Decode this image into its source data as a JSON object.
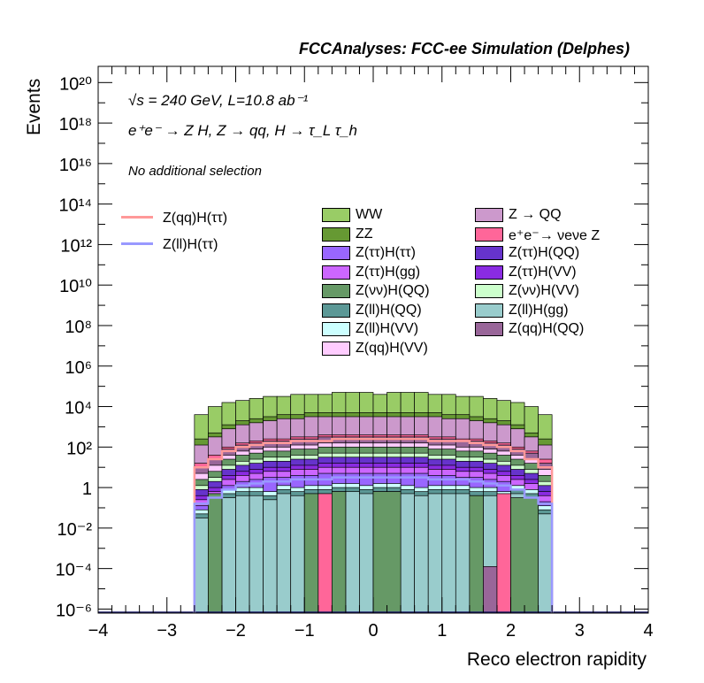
{
  "header": "FCCAnalyses: FCC-ee Simulation (Delphes)",
  "annotations": {
    "line1": "√s = 240 GeV, L=10.8 ab⁻¹",
    "line2": "e⁺e⁻ → Z H, Z → qq, H → τ_L τ_h",
    "line3": "No additional selection"
  },
  "chart_data": {
    "type": "histogram-stack",
    "xlabel": "Reco electron rapidity",
    "ylabel": "Events",
    "xlim": [
      -4,
      4
    ],
    "ylim_log10": [
      -6.2,
      20.8
    ],
    "yscale": "log",
    "x_ticks": [
      "−4",
      "−3",
      "−2",
      "−1",
      "0",
      "1",
      "2",
      "3",
      "4"
    ],
    "y_ticks": [
      "10⁻⁶",
      "10⁻⁴",
      "10⁻²",
      "1",
      "10²",
      "10⁴",
      "10⁶",
      "10⁸",
      "10¹⁰",
      "10¹²",
      "10¹⁴",
      "10¹⁶",
      "10¹⁸",
      "10²⁰"
    ],
    "bin_edges": [
      -2.6,
      -2.4,
      -2.2,
      -2.0,
      -1.8,
      -1.6,
      -1.4,
      -1.2,
      -1.0,
      -0.8,
      -0.6,
      -0.4,
      -0.2,
      0.0,
      0.2,
      0.4,
      0.6,
      0.8,
      1.0,
      1.2,
      1.4,
      1.6,
      1.8,
      2.0,
      2.2,
      2.4,
      2.6
    ],
    "stack_layers": [
      {
        "name": "Z(ll)H(gg)",
        "color": "#99cccc",
        "log10_top": [
          -1.5,
          -1.2,
          -0.5,
          -0.4,
          -0.4,
          -0.6,
          -0.3,
          -0.4,
          -0.3,
          -0.3,
          -0.2,
          -0.2,
          -0.3,
          -0.2,
          -0.2,
          -0.3,
          -0.4,
          -0.3,
          -0.3,
          -0.3,
          -0.4,
          -0.4,
          -0.6,
          -0.3,
          -0.5,
          -1.3
        ]
      },
      {
        "name": "Z(ll)H(QQ)",
        "color": "#5c9896",
        "log10_top": [
          -1.3,
          -1.0,
          -0.3,
          -0.2,
          -0.2,
          -0.4,
          -0.1,
          -0.2,
          -0.1,
          -0.1,
          0.0,
          0.0,
          -0.1,
          0.0,
          0.0,
          -0.1,
          -0.2,
          -0.1,
          -0.1,
          -0.1,
          -0.2,
          -0.2,
          -0.4,
          -0.1,
          -0.3,
          -1.1
        ]
      },
      {
        "name": "Z(ll)H(VV)",
        "color": "#ccffff",
        "log10_top": [
          -1.1,
          -0.8,
          -0.1,
          0.0,
          0.0,
          -0.2,
          0.1,
          0.0,
          0.1,
          0.1,
          0.2,
          0.2,
          0.1,
          0.2,
          0.2,
          0.1,
          0.0,
          0.1,
          0.1,
          0.1,
          0.0,
          0.0,
          -0.2,
          0.1,
          -0.1,
          -0.9
        ]
      },
      {
        "name": "Z(ττ)H(ττ)",
        "color": "#9966ff",
        "log10_top": [
          -0.9,
          -0.5,
          0.1,
          0.3,
          0.4,
          0.5,
          0.5,
          0.6,
          0.6,
          0.7,
          0.7,
          0.7,
          0.7,
          0.7,
          0.7,
          0.7,
          0.7,
          0.6,
          0.6,
          0.5,
          0.5,
          0.4,
          0.3,
          0.1,
          -0.1,
          -0.7
        ]
      },
      {
        "name": "Z(ττ)H(gg)",
        "color": "#cc66ff",
        "log10_top": [
          -0.6,
          -0.2,
          0.4,
          0.6,
          0.7,
          0.8,
          0.8,
          0.9,
          0.9,
          1.0,
          1.0,
          1.0,
          1.0,
          1.0,
          1.0,
          1.0,
          1.0,
          0.9,
          0.9,
          0.8,
          0.8,
          0.7,
          0.6,
          0.4,
          0.2,
          -0.4
        ]
      },
      {
        "name": "Z(ττ)H(VV)",
        "color": "#8a2be2",
        "log10_top": [
          -0.4,
          0.0,
          0.6,
          0.8,
          0.9,
          1.0,
          1.0,
          1.1,
          1.1,
          1.2,
          1.2,
          1.2,
          1.2,
          1.2,
          1.2,
          1.2,
          1.2,
          1.1,
          1.1,
          1.0,
          1.0,
          0.9,
          0.8,
          0.6,
          0.4,
          -0.2
        ]
      },
      {
        "name": "Z(ττ)H(QQ)",
        "color": "#6633cc",
        "log10_top": [
          -0.1,
          0.3,
          0.9,
          1.1,
          1.2,
          1.3,
          1.3,
          1.4,
          1.4,
          1.5,
          1.5,
          1.5,
          1.5,
          1.5,
          1.5,
          1.5,
          1.5,
          1.4,
          1.4,
          1.3,
          1.3,
          1.2,
          1.1,
          0.9,
          0.7,
          0.1
        ]
      },
      {
        "name": "Z(νν)H(VV)",
        "color": "#ccffcc",
        "log10_top": [
          0.1,
          0.5,
          1.1,
          1.3,
          1.4,
          1.5,
          1.5,
          1.6,
          1.6,
          1.7,
          1.7,
          1.7,
          1.7,
          1.7,
          1.7,
          1.7,
          1.7,
          1.6,
          1.6,
          1.5,
          1.5,
          1.4,
          1.3,
          1.1,
          0.9,
          0.3
        ]
      },
      {
        "name": "Z(νν)H(QQ)",
        "color": "#669966",
        "log10_top": [
          0.4,
          0.8,
          1.4,
          1.6,
          1.7,
          1.8,
          1.8,
          1.9,
          1.9,
          2.0,
          2.0,
          2.0,
          2.0,
          2.0,
          2.0,
          2.0,
          2.0,
          1.9,
          1.9,
          1.8,
          1.8,
          1.7,
          1.6,
          1.4,
          1.2,
          0.6
        ]
      },
      {
        "name": "Z(qq)H(VV)",
        "color": "#ffccff",
        "log10_top": [
          0.7,
          1.1,
          1.6,
          1.8,
          1.9,
          2.0,
          2.0,
          2.1,
          2.1,
          2.2,
          2.2,
          2.2,
          2.2,
          2.2,
          2.2,
          2.2,
          2.2,
          2.1,
          2.1,
          2.0,
          2.0,
          1.9,
          1.8,
          1.6,
          1.4,
          0.9
        ]
      },
      {
        "name": "Z(qq)H(QQ)",
        "color": "#996699",
        "log10_top": [
          1.0,
          1.4,
          1.9,
          2.1,
          2.2,
          2.3,
          2.3,
          2.4,
          2.4,
          2.5,
          2.5,
          2.5,
          2.5,
          2.5,
          2.5,
          2.5,
          2.5,
          2.4,
          2.4,
          2.3,
          2.3,
          2.2,
          2.1,
          1.9,
          1.7,
          1.2
        ]
      },
      {
        "name": "e⁺e⁻→ νeνe Z",
        "color": "#ff6699",
        "log10_top": [
          1.2,
          1.6,
          2.0,
          2.2,
          2.3,
          2.4,
          2.4,
          2.5,
          2.5,
          2.6,
          2.6,
          2.6,
          2.6,
          2.6,
          2.6,
          2.6,
          2.6,
          2.5,
          2.5,
          2.4,
          2.4,
          2.3,
          2.2,
          2.0,
          1.8,
          1.4
        ]
      },
      {
        "name": "Z → QQ",
        "color": "#cc99cc",
        "log10_top": [
          2.1,
          2.5,
          2.9,
          3.1,
          3.2,
          3.3,
          3.4,
          3.4,
          3.5,
          3.5,
          3.5,
          3.5,
          3.5,
          3.5,
          3.5,
          3.5,
          3.5,
          3.5,
          3.4,
          3.4,
          3.3,
          3.2,
          3.1,
          2.9,
          2.5,
          2.1
        ]
      },
      {
        "name": "ZZ",
        "color": "#669933",
        "log10_top": [
          2.4,
          2.7,
          3.1,
          3.3,
          3.4,
          3.5,
          3.6,
          3.6,
          3.7,
          3.7,
          3.7,
          3.7,
          3.7,
          3.7,
          3.7,
          3.7,
          3.7,
          3.7,
          3.6,
          3.6,
          3.5,
          3.4,
          3.3,
          3.1,
          2.7,
          2.4
        ]
      },
      {
        "name": "WW",
        "color": "#99cc66",
        "log10_top": [
          3.6,
          4.0,
          4.2,
          4.3,
          4.4,
          4.5,
          4.5,
          4.6,
          4.6,
          4.6,
          4.7,
          4.7,
          4.7,
          4.6,
          4.7,
          4.7,
          4.7,
          4.6,
          4.6,
          4.5,
          4.5,
          4.4,
          4.3,
          4.2,
          4.0,
          3.6
        ]
      }
    ],
    "overlay_regions": [
      {
        "name": "Z(νν)H(QQ)",
        "color": "#669966",
        "x_from": -2.4,
        "x_to": -2.2,
        "log10_top": -0.3
      },
      {
        "name": "Z(νν)H(QQ)",
        "color": "#669966",
        "x_from": -1.0,
        "x_to": -0.8,
        "log10_top": -0.3
      },
      {
        "name": "e⁺e⁻→ νeνe Z",
        "color": "#ff6699",
        "x_from": -0.8,
        "x_to": -0.6,
        "log10_top": -0.3
      },
      {
        "name": "Z(νν)H(QQ)",
        "color": "#669966",
        "x_from": -0.6,
        "x_to": -0.4,
        "log10_top": -0.2
      },
      {
        "name": "Z(νν)H(QQ)",
        "color": "#669966",
        "x_from": 0.0,
        "x_to": 0.4,
        "log10_top": -0.2
      },
      {
        "name": "Z(νν)H(QQ)",
        "color": "#669966",
        "x_from": 1.4,
        "x_to": 1.6,
        "log10_top": -0.4
      },
      {
        "name": "Z(qq)H(QQ)",
        "color": "#996699",
        "x_from": 1.6,
        "x_to": 1.8,
        "log10_top": -3.9
      },
      {
        "name": "e⁺e⁻→ νeνe Z",
        "color": "#ff6699",
        "x_from": 1.8,
        "x_to": 2.0,
        "log10_top": -0.3
      },
      {
        "name": "Z(νν)H(QQ)",
        "color": "#669966",
        "x_from": 2.0,
        "x_to": 2.4,
        "log10_top": -0.5
      }
    ],
    "signal_lines": [
      {
        "name": "Z(qq)H(ττ)",
        "color": "#ff9999",
        "log10_values": [
          1.0,
          1.4,
          1.8,
          2.0,
          2.1,
          2.2,
          2.2,
          2.3,
          2.3,
          2.3,
          2.4,
          2.4,
          2.4,
          2.4,
          2.4,
          2.4,
          2.4,
          2.3,
          2.3,
          2.3,
          2.2,
          2.1,
          2.0,
          1.8,
          1.4,
          1.0
        ]
      },
      {
        "name": "Z(ll)H(ττ)",
        "color": "#9999ff",
        "log10_values": [
          -0.8,
          -0.5,
          -0.1,
          0.1,
          0.2,
          0.3,
          0.3,
          0.4,
          0.4,
          0.4,
          0.5,
          0.5,
          0.5,
          0.5,
          0.5,
          0.5,
          0.5,
          0.4,
          0.4,
          0.4,
          0.3,
          0.2,
          0.1,
          -0.1,
          -0.5,
          -0.8
        ]
      }
    ],
    "legend": {
      "lines": [
        {
          "label": "Z(qq)H(ττ)",
          "color": "#ff9999"
        },
        {
          "label": "Z(ll)H(ττ)",
          "color": "#9999ff"
        }
      ],
      "fills": [
        {
          "label": "WW",
          "color": "#99cc66"
        },
        {
          "label": "Z → QQ",
          "color": "#cc99cc"
        },
        {
          "label": "ZZ",
          "color": "#669933"
        },
        {
          "label": "e⁺e⁻→ νeνe Z",
          "color": "#ff6699"
        },
        {
          "label": "Z(ττ)H(ττ)",
          "color": "#9966ff"
        },
        {
          "label": "Z(ττ)H(QQ)",
          "color": "#6633cc"
        },
        {
          "label": "Z(ττ)H(gg)",
          "color": "#cc66ff"
        },
        {
          "label": "Z(ττ)H(VV)",
          "color": "#8a2be2"
        },
        {
          "label": "Z(νν)H(QQ)",
          "color": "#669966"
        },
        {
          "label": "Z(νν)H(VV)",
          "color": "#ccffcc"
        },
        {
          "label": "Z(ll)H(QQ)",
          "color": "#5c9896"
        },
        {
          "label": "Z(ll)H(gg)",
          "color": "#99cccc"
        },
        {
          "label": "Z(ll)H(VV)",
          "color": "#ccffff"
        },
        {
          "label": "Z(qq)H(QQ)",
          "color": "#996699"
        },
        {
          "label": "Z(qq)H(VV)",
          "color": "#ffccff"
        }
      ]
    }
  }
}
